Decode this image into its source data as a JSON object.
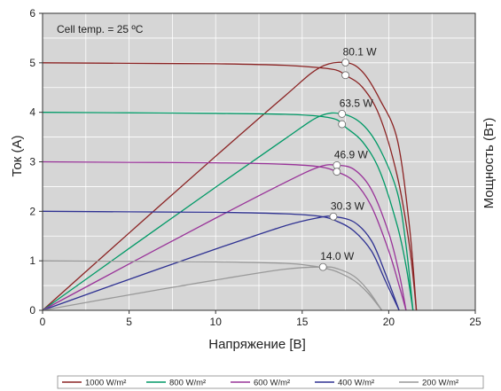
{
  "chart_data": {
    "type": "line",
    "xlabel": "Напряжение [В]",
    "ylabel_left": "Ток (А)",
    "ylabel_right": "Мощность (Вт)",
    "xlim": [
      0,
      25
    ],
    "ylim": [
      0,
      6
    ],
    "xticks": [
      0,
      5,
      10,
      15,
      20,
      25
    ],
    "yticks": [
      0,
      1,
      2,
      3,
      4,
      5,
      6
    ],
    "grid": true,
    "annotation": "Cell temp. = 25 ºC",
    "legend_position": "bottom",
    "series": [
      {
        "name": "1000 W/m²",
        "color": "#8b2323",
        "isc": 5.0,
        "voc": 21.6,
        "pmax_label": "80.1 W",
        "iv_curve": [
          [
            0,
            5.0
          ],
          [
            5,
            4.99
          ],
          [
            10,
            4.98
          ],
          [
            14,
            4.95
          ],
          [
            16,
            4.9
          ],
          [
            17,
            4.85
          ],
          [
            17.5,
            4.75
          ],
          [
            18.5,
            4.5
          ],
          [
            19.5,
            3.9
          ],
          [
            20.5,
            2.7
          ],
          [
            21.2,
            1.3
          ],
          [
            21.6,
            0
          ]
        ],
        "power_curve": [
          [
            0,
            0
          ],
          [
            5,
            25
          ],
          [
            10,
            49.8
          ],
          [
            14,
            69.3
          ],
          [
            16,
            78.4
          ],
          [
            17.5,
            80.1
          ],
          [
            18.5,
            77
          ],
          [
            19.5,
            68
          ],
          [
            20.5,
            55
          ],
          [
            21.2,
            27
          ],
          [
            21.6,
            0
          ]
        ]
      },
      {
        "name": "800 W/m²",
        "color": "#009966",
        "isc": 4.0,
        "voc": 21.4,
        "pmax_label": "63.5 W",
        "iv_curve": [
          [
            0,
            4.0
          ],
          [
            5,
            3.99
          ],
          [
            10,
            3.98
          ],
          [
            14,
            3.96
          ],
          [
            16,
            3.92
          ],
          [
            17,
            3.85
          ],
          [
            17.5,
            3.7
          ],
          [
            18.5,
            3.4
          ],
          [
            19.5,
            2.8
          ],
          [
            20.5,
            1.7
          ],
          [
            21,
            0.9
          ],
          [
            21.4,
            0
          ]
        ],
        "power_curve": [
          [
            0,
            0
          ],
          [
            5,
            20
          ],
          [
            10,
            39.8
          ],
          [
            14,
            55.4
          ],
          [
            16,
            62.7
          ],
          [
            17.3,
            63.5
          ],
          [
            18.5,
            60
          ],
          [
            19.5,
            52
          ],
          [
            20.5,
            38
          ],
          [
            21,
            21
          ],
          [
            21.4,
            0
          ]
        ]
      },
      {
        "name": "600 W/m²",
        "color": "#993399",
        "isc": 3.0,
        "voc": 21.0,
        "pmax_label": "46.9 W",
        "iv_curve": [
          [
            0,
            3.0
          ],
          [
            5,
            2.99
          ],
          [
            10,
            2.98
          ],
          [
            14,
            2.95
          ],
          [
            16,
            2.9
          ],
          [
            17,
            2.8
          ],
          [
            18,
            2.6
          ],
          [
            19,
            2.1
          ],
          [
            20,
            1.2
          ],
          [
            20.6,
            0.5
          ],
          [
            21,
            0
          ]
        ],
        "power_curve": [
          [
            0,
            0
          ],
          [
            5,
            15
          ],
          [
            10,
            29.8
          ],
          [
            14,
            41.3
          ],
          [
            16,
            46.4
          ],
          [
            17,
            46.9
          ],
          [
            18,
            45.5
          ],
          [
            19,
            39
          ],
          [
            20,
            25
          ],
          [
            20.6,
            12
          ],
          [
            21,
            0
          ]
        ]
      },
      {
        "name": "400 W/m²",
        "color": "#2e3192",
        "isc": 2.0,
        "voc": 20.6,
        "pmax_label": "30.3 W",
        "iv_curve": [
          [
            0,
            2.0
          ],
          [
            5,
            1.99
          ],
          [
            10,
            1.98
          ],
          [
            14,
            1.95
          ],
          [
            16,
            1.9
          ],
          [
            17,
            1.8
          ],
          [
            18,
            1.6
          ],
          [
            19,
            1.2
          ],
          [
            19.8,
            0.6
          ],
          [
            20.6,
            0
          ]
        ],
        "power_curve": [
          [
            0,
            0
          ],
          [
            5,
            10
          ],
          [
            10,
            19.8
          ],
          [
            14,
            27.3
          ],
          [
            16,
            30.0
          ],
          [
            16.8,
            30.3
          ],
          [
            18,
            28.5
          ],
          [
            19,
            22.5
          ],
          [
            19.8,
            12
          ],
          [
            20.6,
            0
          ]
        ]
      },
      {
        "name": "200 W/m²",
        "color": "#999999",
        "isc": 1.0,
        "voc": 19.6,
        "pmax_label": "14.0 W",
        "iv_curve": [
          [
            0,
            1.0
          ],
          [
            5,
            0.99
          ],
          [
            10,
            0.98
          ],
          [
            14,
            0.95
          ],
          [
            15.5,
            0.9
          ],
          [
            16.2,
            0.86
          ],
          [
            17,
            0.78
          ],
          [
            18,
            0.6
          ],
          [
            18.8,
            0.35
          ],
          [
            19.6,
            0
          ]
        ],
        "power_curve": [
          [
            0,
            0
          ],
          [
            5,
            5
          ],
          [
            10,
            9.8
          ],
          [
            14,
            13.3
          ],
          [
            16.2,
            14.0
          ],
          [
            17,
            13.5
          ],
          [
            18,
            11
          ],
          [
            18.8,
            6.5
          ],
          [
            19.6,
            0
          ]
        ]
      }
    ]
  }
}
